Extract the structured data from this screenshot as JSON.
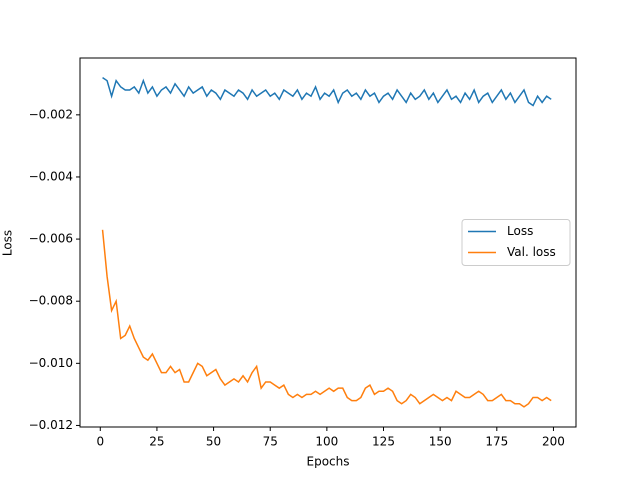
{
  "chart_data": {
    "type": "line",
    "x_label": "Epochs",
    "y_label": "Loss",
    "x": [
      1,
      3,
      5,
      7,
      9,
      11,
      13,
      15,
      17,
      19,
      21,
      23,
      25,
      27,
      29,
      31,
      33,
      35,
      37,
      39,
      41,
      43,
      45,
      47,
      49,
      51,
      53,
      55,
      57,
      59,
      61,
      63,
      65,
      67,
      69,
      71,
      73,
      75,
      77,
      79,
      81,
      83,
      85,
      87,
      89,
      91,
      93,
      95,
      97,
      99,
      101,
      103,
      105,
      107,
      109,
      111,
      113,
      115,
      117,
      119,
      121,
      123,
      125,
      127,
      129,
      131,
      133,
      135,
      137,
      139,
      141,
      143,
      145,
      147,
      149,
      151,
      153,
      155,
      157,
      159,
      161,
      163,
      165,
      167,
      169,
      171,
      173,
      175,
      177,
      179,
      181,
      183,
      185,
      187,
      189,
      191,
      193,
      195,
      197,
      199
    ],
    "series": [
      {
        "name": "Loss",
        "color": "#1f77b4",
        "values": [
          -0.0008,
          -0.0009,
          -0.0014,
          -0.0009,
          -0.0011,
          -0.0012,
          -0.0012,
          -0.0011,
          -0.0013,
          -0.0009,
          -0.0013,
          -0.0011,
          -0.0014,
          -0.0012,
          -0.0011,
          -0.0013,
          -0.001,
          -0.0012,
          -0.0014,
          -0.0011,
          -0.0013,
          -0.0012,
          -0.0011,
          -0.0014,
          -0.0012,
          -0.0013,
          -0.0015,
          -0.0012,
          -0.0013,
          -0.0014,
          -0.0012,
          -0.0013,
          -0.0015,
          -0.0012,
          -0.0014,
          -0.0013,
          -0.0012,
          -0.0014,
          -0.0013,
          -0.0015,
          -0.0012,
          -0.0013,
          -0.0014,
          -0.0012,
          -0.0015,
          -0.0013,
          -0.0014,
          -0.0011,
          -0.0015,
          -0.0013,
          -0.0014,
          -0.0012,
          -0.0016,
          -0.0013,
          -0.0012,
          -0.0014,
          -0.0013,
          -0.0015,
          -0.0012,
          -0.0014,
          -0.0013,
          -0.0016,
          -0.0014,
          -0.0013,
          -0.0015,
          -0.0012,
          -0.0014,
          -0.0016,
          -0.0013,
          -0.0015,
          -0.0014,
          -0.0012,
          -0.0015,
          -0.0013,
          -0.0016,
          -0.0014,
          -0.0012,
          -0.0015,
          -0.0014,
          -0.0016,
          -0.0013,
          -0.0015,
          -0.0012,
          -0.0016,
          -0.0014,
          -0.0013,
          -0.0016,
          -0.0014,
          -0.0012,
          -0.0015,
          -0.0013,
          -0.0016,
          -0.0014,
          -0.0012,
          -0.0016,
          -0.0017,
          -0.0014,
          -0.0016,
          -0.0014,
          -0.0015
        ]
      },
      {
        "name": "Val. loss",
        "color": "#ff7f0e",
        "values": [
          -0.0057,
          -0.0072,
          -0.0083,
          -0.008,
          -0.0092,
          -0.0091,
          -0.0088,
          -0.0092,
          -0.0095,
          -0.0098,
          -0.0099,
          -0.0097,
          -0.01,
          -0.0103,
          -0.0103,
          -0.0101,
          -0.0103,
          -0.0102,
          -0.0106,
          -0.0106,
          -0.0103,
          -0.01,
          -0.0101,
          -0.0104,
          -0.0103,
          -0.0102,
          -0.0105,
          -0.0107,
          -0.0106,
          -0.0105,
          -0.0106,
          -0.0104,
          -0.0106,
          -0.0103,
          -0.0101,
          -0.0108,
          -0.0106,
          -0.0106,
          -0.0107,
          -0.0108,
          -0.0107,
          -0.011,
          -0.0111,
          -0.011,
          -0.0111,
          -0.011,
          -0.011,
          -0.0109,
          -0.011,
          -0.0109,
          -0.0108,
          -0.0109,
          -0.0108,
          -0.0108,
          -0.0111,
          -0.0112,
          -0.0112,
          -0.0111,
          -0.0108,
          -0.0107,
          -0.011,
          -0.0109,
          -0.0109,
          -0.0108,
          -0.0109,
          -0.0112,
          -0.0113,
          -0.0112,
          -0.011,
          -0.0111,
          -0.0113,
          -0.0112,
          -0.0111,
          -0.011,
          -0.0111,
          -0.0112,
          -0.0111,
          -0.0112,
          -0.0109,
          -0.011,
          -0.0111,
          -0.0111,
          -0.011,
          -0.0109,
          -0.011,
          -0.0112,
          -0.0112,
          -0.0111,
          -0.011,
          -0.0112,
          -0.0112,
          -0.0113,
          -0.0113,
          -0.0114,
          -0.0113,
          -0.0111,
          -0.0111,
          -0.0112,
          -0.0111,
          -0.0112
        ]
      }
    ],
    "xlim": [
      -8.95,
      209.95
    ],
    "xticks": [
      0,
      25,
      50,
      75,
      100,
      125,
      150,
      175,
      200
    ],
    "ylim": [
      -0.01205,
      -0.00017
    ],
    "yticks": [
      {
        "value": -0.012,
        "label": "−0.012"
      },
      {
        "value": -0.01,
        "label": "−0.010"
      },
      {
        "value": -0.008,
        "label": "−0.008"
      },
      {
        "value": -0.006,
        "label": "−0.006"
      },
      {
        "value": -0.004,
        "label": "−0.004"
      },
      {
        "value": -0.002,
        "label": "−0.002"
      }
    ],
    "grid": false,
    "legend": "center right"
  }
}
